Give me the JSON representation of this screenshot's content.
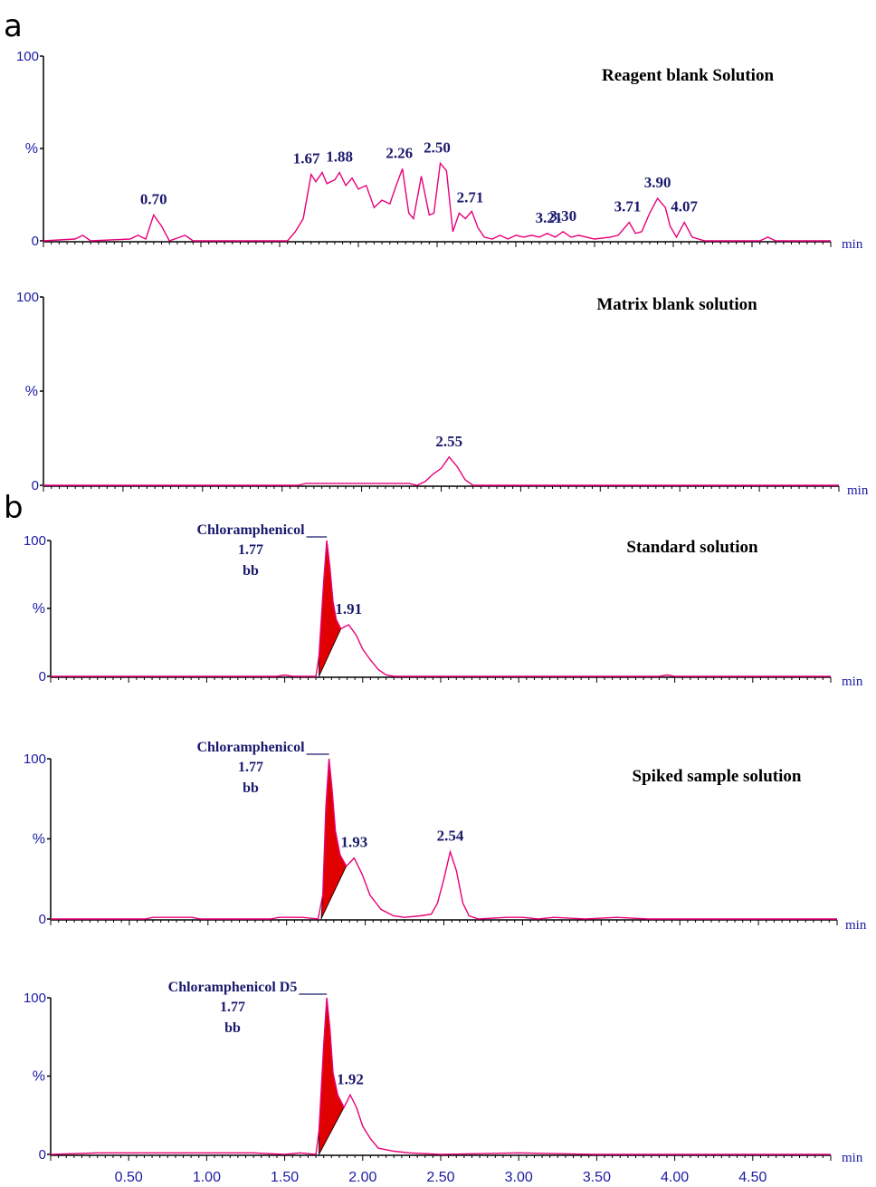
{
  "panel_letters": {
    "a": "a",
    "b": "b"
  },
  "colors": {
    "trace": "#e8007a",
    "axis": "#000000",
    "text_blue": "#1a1aa6",
    "fill": "#e00000"
  },
  "chart_data": [
    {
      "type": "line",
      "panel": "a",
      "title": "Reagent blank Solution",
      "xlabel": "min",
      "ylabel": "%",
      "ylim": [
        0,
        100
      ],
      "y_ticks": [
        "100",
        "0"
      ],
      "y_mid_label": "%",
      "x_range": [
        0.0,
        5.0
      ],
      "peaks": [
        {
          "label": "0.70",
          "x": 0.7,
          "y": 14
        },
        {
          "label": "1.67",
          "x": 1.67,
          "y": 36
        },
        {
          "label": "1.88",
          "x": 1.88,
          "y": 37
        },
        {
          "label": "2.26",
          "x": 2.26,
          "y": 39
        },
        {
          "label": "2.50",
          "x": 2.5,
          "y": 42
        },
        {
          "label": "2.71",
          "x": 2.71,
          "y": 15
        },
        {
          "label": "3.21",
          "x": 3.21,
          "y": 4
        },
        {
          "label": "3.30",
          "x": 3.3,
          "y": 5
        },
        {
          "label": "3.71",
          "x": 3.71,
          "y": 10
        },
        {
          "label": "3.90",
          "x": 3.9,
          "y": 23
        },
        {
          "label": "4.07",
          "x": 4.07,
          "y": 10
        }
      ],
      "trace": [
        [
          0.0,
          0
        ],
        [
          0.2,
          1
        ],
        [
          0.25,
          3
        ],
        [
          0.3,
          0
        ],
        [
          0.55,
          1
        ],
        [
          0.6,
          3
        ],
        [
          0.65,
          1
        ],
        [
          0.7,
          14
        ],
        [
          0.75,
          8
        ],
        [
          0.8,
          0
        ],
        [
          0.9,
          3
        ],
        [
          0.95,
          0
        ],
        [
          1.55,
          0
        ],
        [
          1.6,
          5
        ],
        [
          1.65,
          12
        ],
        [
          1.7,
          36
        ],
        [
          1.73,
          32
        ],
        [
          1.77,
          37
        ],
        [
          1.8,
          31
        ],
        [
          1.85,
          33
        ],
        [
          1.88,
          37
        ],
        [
          1.92,
          30
        ],
        [
          1.96,
          34
        ],
        [
          2.0,
          28
        ],
        [
          2.05,
          30
        ],
        [
          2.1,
          18
        ],
        [
          2.15,
          22
        ],
        [
          2.2,
          20
        ],
        [
          2.24,
          30
        ],
        [
          2.28,
          39
        ],
        [
          2.32,
          15
        ],
        [
          2.35,
          12
        ],
        [
          2.4,
          35
        ],
        [
          2.45,
          14
        ],
        [
          2.48,
          15
        ],
        [
          2.52,
          42
        ],
        [
          2.56,
          38
        ],
        [
          2.6,
          5
        ],
        [
          2.64,
          15
        ],
        [
          2.68,
          12
        ],
        [
          2.72,
          16
        ],
        [
          2.76,
          7
        ],
        [
          2.8,
          2
        ],
        [
          2.85,
          1
        ],
        [
          2.9,
          3
        ],
        [
          2.95,
          1
        ],
        [
          3.0,
          3
        ],
        [
          3.05,
          2
        ],
        [
          3.1,
          3
        ],
        [
          3.15,
          2
        ],
        [
          3.2,
          4
        ],
        [
          3.25,
          2
        ],
        [
          3.3,
          5
        ],
        [
          3.35,
          2
        ],
        [
          3.4,
          3
        ],
        [
          3.5,
          1
        ],
        [
          3.6,
          2
        ],
        [
          3.65,
          3
        ],
        [
          3.72,
          10
        ],
        [
          3.76,
          4
        ],
        [
          3.8,
          5
        ],
        [
          3.85,
          15
        ],
        [
          3.9,
          23
        ],
        [
          3.95,
          18
        ],
        [
          3.98,
          8
        ],
        [
          4.02,
          2
        ],
        [
          4.07,
          10
        ],
        [
          4.12,
          2
        ],
        [
          4.2,
          0
        ],
        [
          4.55,
          0
        ],
        [
          4.6,
          2
        ],
        [
          4.65,
          0
        ],
        [
          5.0,
          0
        ]
      ]
    },
    {
      "type": "line",
      "panel": "a",
      "title": "Matrix blank solution",
      "xlabel": "min",
      "ylabel": "%",
      "ylim": [
        0,
        100
      ],
      "y_ticks": [
        "100",
        "0"
      ],
      "y_mid_label": "%",
      "x_range": [
        0.0,
        5.0
      ],
      "peaks": [
        {
          "label": "2.55",
          "x": 2.55,
          "y": 15
        }
      ],
      "trace": [
        [
          0.0,
          0
        ],
        [
          1.6,
          0
        ],
        [
          1.65,
          1
        ],
        [
          2.3,
          1
        ],
        [
          2.35,
          0
        ],
        [
          2.4,
          2
        ],
        [
          2.45,
          6
        ],
        [
          2.5,
          9
        ],
        [
          2.55,
          15
        ],
        [
          2.6,
          10
        ],
        [
          2.65,
          3
        ],
        [
          2.7,
          0
        ],
        [
          5.0,
          0
        ]
      ]
    },
    {
      "type": "line",
      "panel": "b",
      "title": "Standard solution",
      "xlabel": "min",
      "ylabel": "%",
      "ylim": [
        0,
        100
      ],
      "y_ticks": [
        "100",
        "0"
      ],
      "y_mid_label": "%",
      "x_range": [
        0.0,
        5.0
      ],
      "compound": {
        "name": "Chloramphenicol",
        "rt": "1.77",
        "code": "bb"
      },
      "peaks": [
        {
          "label": "1.91",
          "x": 1.91,
          "y": 38
        }
      ],
      "trace": [
        [
          0.0,
          0
        ],
        [
          1.45,
          0
        ],
        [
          1.5,
          1
        ],
        [
          1.55,
          0
        ],
        [
          1.7,
          0
        ],
        [
          1.72,
          15
        ],
        [
          1.75,
          70
        ],
        [
          1.77,
          100
        ],
        [
          1.79,
          80
        ],
        [
          1.81,
          55
        ],
        [
          1.83,
          42
        ],
        [
          1.86,
          35
        ],
        [
          1.91,
          38
        ],
        [
          1.96,
          30
        ],
        [
          2.0,
          20
        ],
        [
          2.05,
          12
        ],
        [
          2.1,
          5
        ],
        [
          2.15,
          1
        ],
        [
          2.2,
          0
        ],
        [
          3.9,
          0
        ],
        [
          3.95,
          1
        ],
        [
          4.0,
          0
        ],
        [
          5.0,
          0
        ]
      ]
    },
    {
      "type": "line",
      "panel": "b",
      "title": "Spiked sample solution",
      "xlabel": "min",
      "ylabel": "%",
      "ylim": [
        0,
        100
      ],
      "y_ticks": [
        "100",
        "0"
      ],
      "y_mid_label": "%",
      "x_range": [
        0.0,
        5.0
      ],
      "compound": {
        "name": "Chloramphenicol",
        "rt": "1.77",
        "code": "bb"
      },
      "peaks": [
        {
          "label": "1.93",
          "x": 1.93,
          "y": 38
        },
        {
          "label": "2.54",
          "x": 2.54,
          "y": 42
        }
      ],
      "trace": [
        [
          0.0,
          0
        ],
        [
          0.6,
          0
        ],
        [
          0.65,
          1
        ],
        [
          0.9,
          1
        ],
        [
          0.95,
          0
        ],
        [
          1.4,
          0
        ],
        [
          1.45,
          1
        ],
        [
          1.6,
          1
        ],
        [
          1.7,
          0
        ],
        [
          1.73,
          15
        ],
        [
          1.75,
          70
        ],
        [
          1.77,
          100
        ],
        [
          1.79,
          80
        ],
        [
          1.81,
          55
        ],
        [
          1.84,
          40
        ],
        [
          1.88,
          33
        ],
        [
          1.93,
          38
        ],
        [
          1.98,
          28
        ],
        [
          2.03,
          15
        ],
        [
          2.1,
          6
        ],
        [
          2.18,
          2
        ],
        [
          2.25,
          1
        ],
        [
          2.35,
          2
        ],
        [
          2.42,
          3
        ],
        [
          2.46,
          10
        ],
        [
          2.5,
          25
        ],
        [
          2.54,
          42
        ],
        [
          2.58,
          30
        ],
        [
          2.62,
          10
        ],
        [
          2.66,
          2
        ],
        [
          2.72,
          0
        ],
        [
          2.9,
          1
        ],
        [
          3.0,
          1
        ],
        [
          3.1,
          0
        ],
        [
          3.2,
          1
        ],
        [
          3.4,
          0
        ],
        [
          3.6,
          1
        ],
        [
          3.8,
          0
        ],
        [
          4.2,
          0
        ],
        [
          5.0,
          0
        ]
      ]
    },
    {
      "type": "line",
      "panel": "b",
      "title": "",
      "xlabel": "min",
      "ylabel": "%",
      "ylim": [
        0,
        100
      ],
      "y_ticks": [
        "100",
        "0"
      ],
      "y_mid_label": "%",
      "x_range": [
        0.0,
        5.0
      ],
      "x_tick_labels": [
        "0.50",
        "1.00",
        "1.50",
        "2.00",
        "2.50",
        "3.00",
        "3.50",
        "4.00",
        "4.50"
      ],
      "compound": {
        "name": "Chloramphenicol D5",
        "rt": "1.77",
        "code": "bb"
      },
      "peaks": [
        {
          "label": "1.92",
          "x": 1.92,
          "y": 38
        }
      ],
      "trace": [
        [
          0.0,
          0
        ],
        [
          0.3,
          1
        ],
        [
          0.6,
          1
        ],
        [
          1.0,
          1
        ],
        [
          1.3,
          1
        ],
        [
          1.5,
          0
        ],
        [
          1.6,
          1
        ],
        [
          1.7,
          0
        ],
        [
          1.72,
          15
        ],
        [
          1.75,
          70
        ],
        [
          1.77,
          100
        ],
        [
          1.79,
          80
        ],
        [
          1.81,
          52
        ],
        [
          1.84,
          38
        ],
        [
          1.88,
          30
        ],
        [
          1.92,
          38
        ],
        [
          1.96,
          30
        ],
        [
          2.0,
          18
        ],
        [
          2.05,
          10
        ],
        [
          2.1,
          4
        ],
        [
          2.2,
          2
        ],
        [
          2.3,
          1
        ],
        [
          2.5,
          0
        ],
        [
          3.0,
          1
        ],
        [
          3.5,
          0
        ],
        [
          4.0,
          0
        ],
        [
          5.0,
          0
        ]
      ]
    }
  ]
}
